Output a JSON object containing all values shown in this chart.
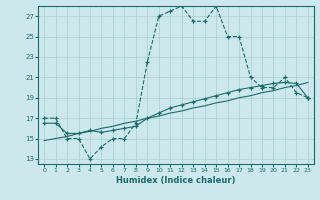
{
  "title": "",
  "xlabel": "Humidex (Indice chaleur)",
  "background_color": "#cce8ec",
  "grid_color": "#aacccc",
  "line_color": "#1a6b6b",
  "xlim": [
    -0.5,
    23.5
  ],
  "ylim": [
    12.5,
    28
  ],
  "yticks": [
    13,
    15,
    17,
    19,
    21,
    23,
    25,
    27
  ],
  "xticks": [
    0,
    1,
    2,
    3,
    4,
    5,
    6,
    7,
    8,
    9,
    10,
    11,
    12,
    13,
    14,
    15,
    16,
    17,
    18,
    19,
    20,
    21,
    22,
    23
  ],
  "line1_x": [
    0,
    1,
    2,
    3,
    4,
    5,
    6,
    7,
    8,
    9,
    10,
    11,
    12,
    13,
    14,
    15,
    16,
    17,
    18,
    19,
    20,
    21,
    22,
    23
  ],
  "line1_y": [
    17,
    17,
    15,
    15,
    13,
    14.2,
    15,
    15,
    16.5,
    22.5,
    27,
    27.5,
    28,
    26.5,
    26.5,
    28.0,
    25,
    25,
    21,
    20,
    20,
    21,
    19.5,
    19
  ],
  "line2_x": [
    0,
    1,
    2,
    3,
    4,
    5,
    6,
    7,
    8,
    9,
    10,
    11,
    12,
    13,
    14,
    15,
    16,
    17,
    18,
    19,
    20,
    21,
    22,
    23
  ],
  "line2_y": [
    16.5,
    16.5,
    15.5,
    15.5,
    15.8,
    15.6,
    15.8,
    16.0,
    16.2,
    17.0,
    17.5,
    18.0,
    18.3,
    18.6,
    18.9,
    19.2,
    19.5,
    19.8,
    20.0,
    20.2,
    20.4,
    20.5,
    20.4,
    19.0
  ],
  "line3_x": [
    0,
    1,
    2,
    3,
    4,
    5,
    6,
    7,
    8,
    9,
    10,
    11,
    12,
    13,
    14,
    15,
    16,
    17,
    18,
    19,
    20,
    21,
    22,
    23
  ],
  "line3_y": [
    14.8,
    15.0,
    15.2,
    15.5,
    15.7,
    16.0,
    16.2,
    16.5,
    16.7,
    17.0,
    17.2,
    17.5,
    17.7,
    18.0,
    18.2,
    18.5,
    18.7,
    19.0,
    19.2,
    19.5,
    19.7,
    20.0,
    20.2,
    20.5
  ]
}
